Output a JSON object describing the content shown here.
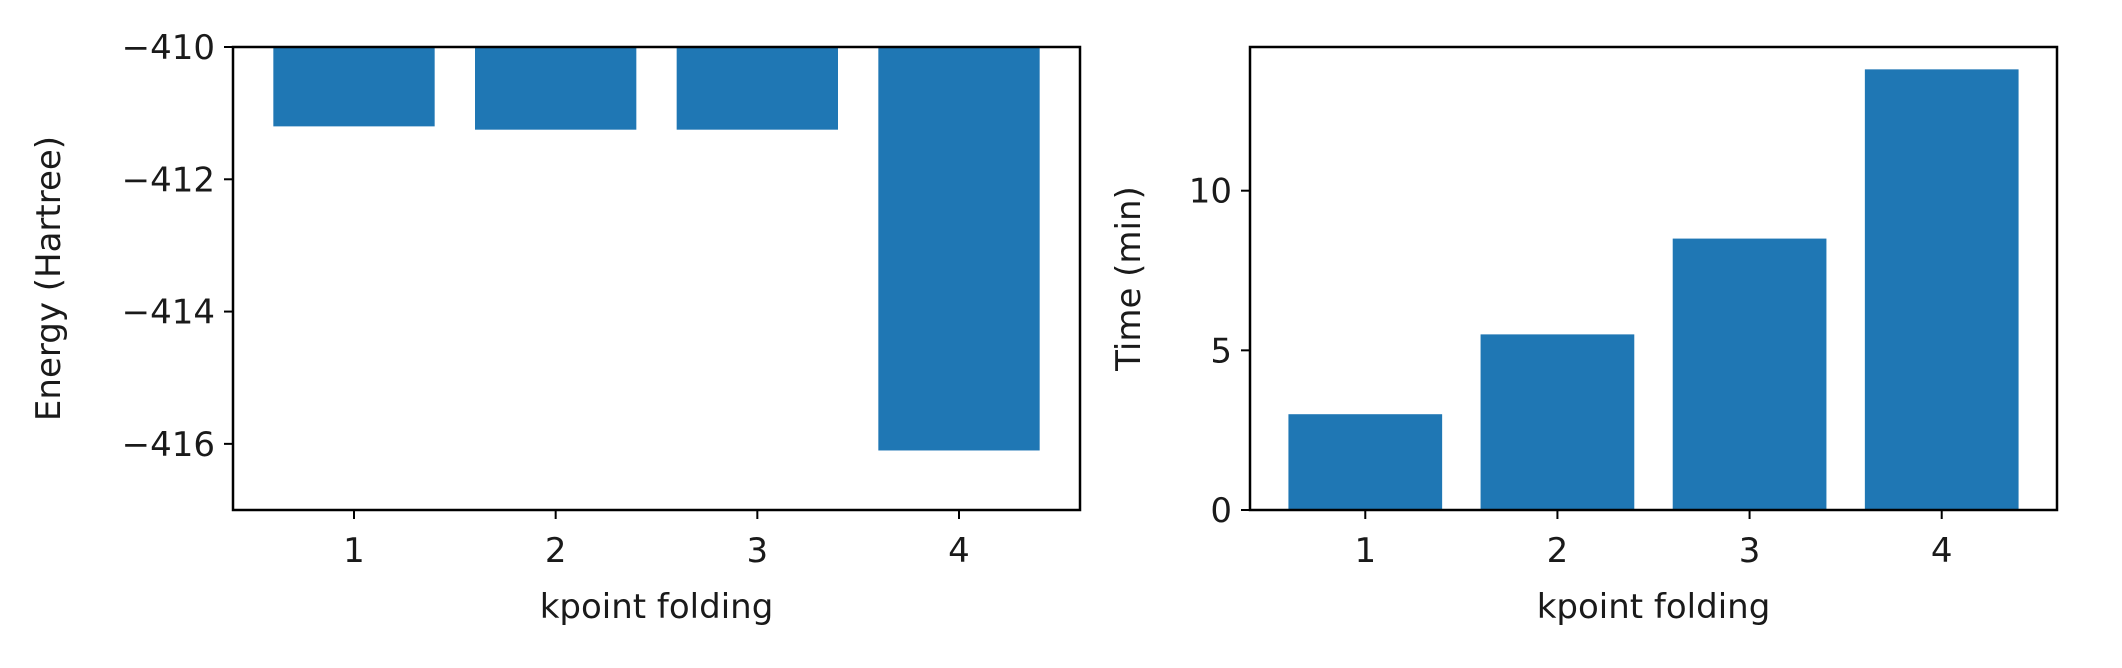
{
  "colors": {
    "bar": "#1f77b4",
    "axes": "#000000",
    "background": "#ffffff"
  },
  "chart_data": [
    {
      "type": "bar",
      "categories": [
        "1",
        "2",
        "3",
        "4"
      ],
      "values": [
        -411.2,
        -411.25,
        -411.25,
        -416.1
      ],
      "xlabel": "kpoint folding",
      "ylabel": "Energy (Hartree)",
      "ylim": [
        -417,
        -410
      ],
      "bar_baseline": -410,
      "yticks": [
        -410,
        -412,
        -414,
        -416
      ],
      "ytick_labels": [
        "−410",
        "−412",
        "−414",
        "−416"
      ],
      "grid": false,
      "legend": "none"
    },
    {
      "type": "bar",
      "categories": [
        "1",
        "2",
        "3",
        "4"
      ],
      "values": [
        3.0,
        5.5,
        8.5,
        13.8
      ],
      "xlabel": "kpoint folding",
      "ylabel": "Time (min)",
      "ylim": [
        0,
        14.5
      ],
      "bar_baseline": 0,
      "yticks": [
        0,
        5,
        10
      ],
      "ytick_labels": [
        "0",
        "5",
        "10"
      ],
      "grid": false,
      "legend": "none"
    }
  ]
}
